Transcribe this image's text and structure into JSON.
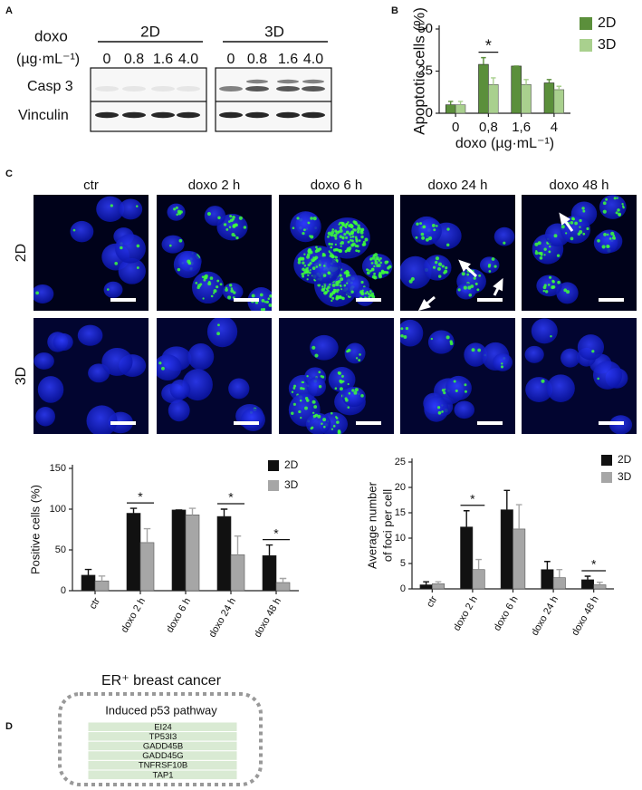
{
  "panel_labels": [
    "A",
    "B",
    "C",
    "D"
  ],
  "blot": {
    "treatment_label": "doxo",
    "unit_label": "(µg·mL⁻¹)",
    "groups": [
      {
        "name": "2D",
        "doses": [
          "0",
          "0.8",
          "1.6",
          "4.0"
        ]
      },
      {
        "name": "3D",
        "doses": [
          "0",
          "0.8",
          "1.6",
          "4.0"
        ]
      }
    ],
    "rows": [
      "Casp 3",
      "Vinculin"
    ]
  },
  "microscopy": {
    "columns": [
      "ctr",
      "doxo 2 h",
      "doxo 6 h",
      "doxo 24 h",
      "doxo 48 h"
    ],
    "rows": [
      "2D",
      "3D"
    ]
  },
  "chart_data": [
    {
      "type": "bar",
      "ylabel": "Apoptotic cells (%)",
      "xlabel": "doxo (µg·mL⁻¹)",
      "categories": [
        "0",
        "0,8",
        "1,6",
        "4"
      ],
      "series": [
        {
          "name": "2D",
          "color": "#5b8f3b",
          "values": [
            5,
            29,
            28,
            18
          ],
          "errors": [
            2,
            4,
            0,
            2
          ]
        },
        {
          "name": "3D",
          "color": "#a9d08e",
          "values": [
            5,
            17,
            17,
            14
          ],
          "errors": [
            2,
            4,
            3,
            2
          ]
        }
      ],
      "ylim": [
        0,
        50
      ],
      "yticks": [
        0,
        25,
        50
      ],
      "legend": "upper right",
      "annotations": [
        {
          "text": "*",
          "category": "0,8"
        }
      ]
    },
    {
      "type": "bar",
      "ylabel": "Positive cells (%)",
      "categories": [
        "ctr",
        "doxo 2 h",
        "doxo 6 h",
        "doxo 24 h",
        "doxo 48 h"
      ],
      "series": [
        {
          "name": "2D",
          "color": "#111111",
          "values": [
            19,
            95,
            99,
            91,
            43
          ],
          "errors": [
            7,
            6,
            0,
            9,
            13
          ]
        },
        {
          "name": "3D",
          "color": "#a6a6a6",
          "values": [
            12,
            59,
            93,
            44,
            10
          ],
          "errors": [
            6,
            17,
            8,
            23,
            5
          ]
        }
      ],
      "ylim": [
        0,
        150
      ],
      "yticks": [
        0,
        50,
        100,
        150
      ],
      "legend": "upper right",
      "annotations": [
        {
          "text": "*",
          "category": "doxo 2 h"
        },
        {
          "text": "*",
          "category": "doxo 24 h"
        },
        {
          "text": "*",
          "category": "doxo 48 h"
        }
      ]
    },
    {
      "type": "bar",
      "ylabel_lines": [
        "Average number",
        "of foci per cell"
      ],
      "categories": [
        "ctr",
        "doxo 2 h",
        "doxo 6 h",
        "doxo 24 h",
        "doxo 48 h"
      ],
      "series": [
        {
          "name": "2D",
          "color": "#111111",
          "values": [
            0.8,
            12.2,
            15.6,
            3.8,
            1.8
          ],
          "errors": [
            0.6,
            3.2,
            3.8,
            1.6,
            0.7
          ]
        },
        {
          "name": "3D",
          "color": "#a6a6a6",
          "values": [
            1.0,
            3.8,
            11.8,
            2.2,
            0.8
          ],
          "errors": [
            0.4,
            2.0,
            4.8,
            1.6,
            0.5
          ]
        }
      ],
      "ylim": [
        0,
        25
      ],
      "yticks": [
        0,
        5,
        10,
        15,
        20,
        25
      ],
      "legend": "upper right",
      "annotations": [
        {
          "text": "*",
          "category": "doxo 2 h"
        },
        {
          "text": "*",
          "category": "doxo 48 h"
        }
      ]
    }
  ],
  "panel_d": {
    "title": "ER⁺ breast cancer",
    "box_title": "Induced p53 pathway",
    "genes": [
      "EI24",
      "TP53I3",
      "GADD45B",
      "GADD45G",
      "TNFRSF10B",
      "TAP1"
    ]
  }
}
